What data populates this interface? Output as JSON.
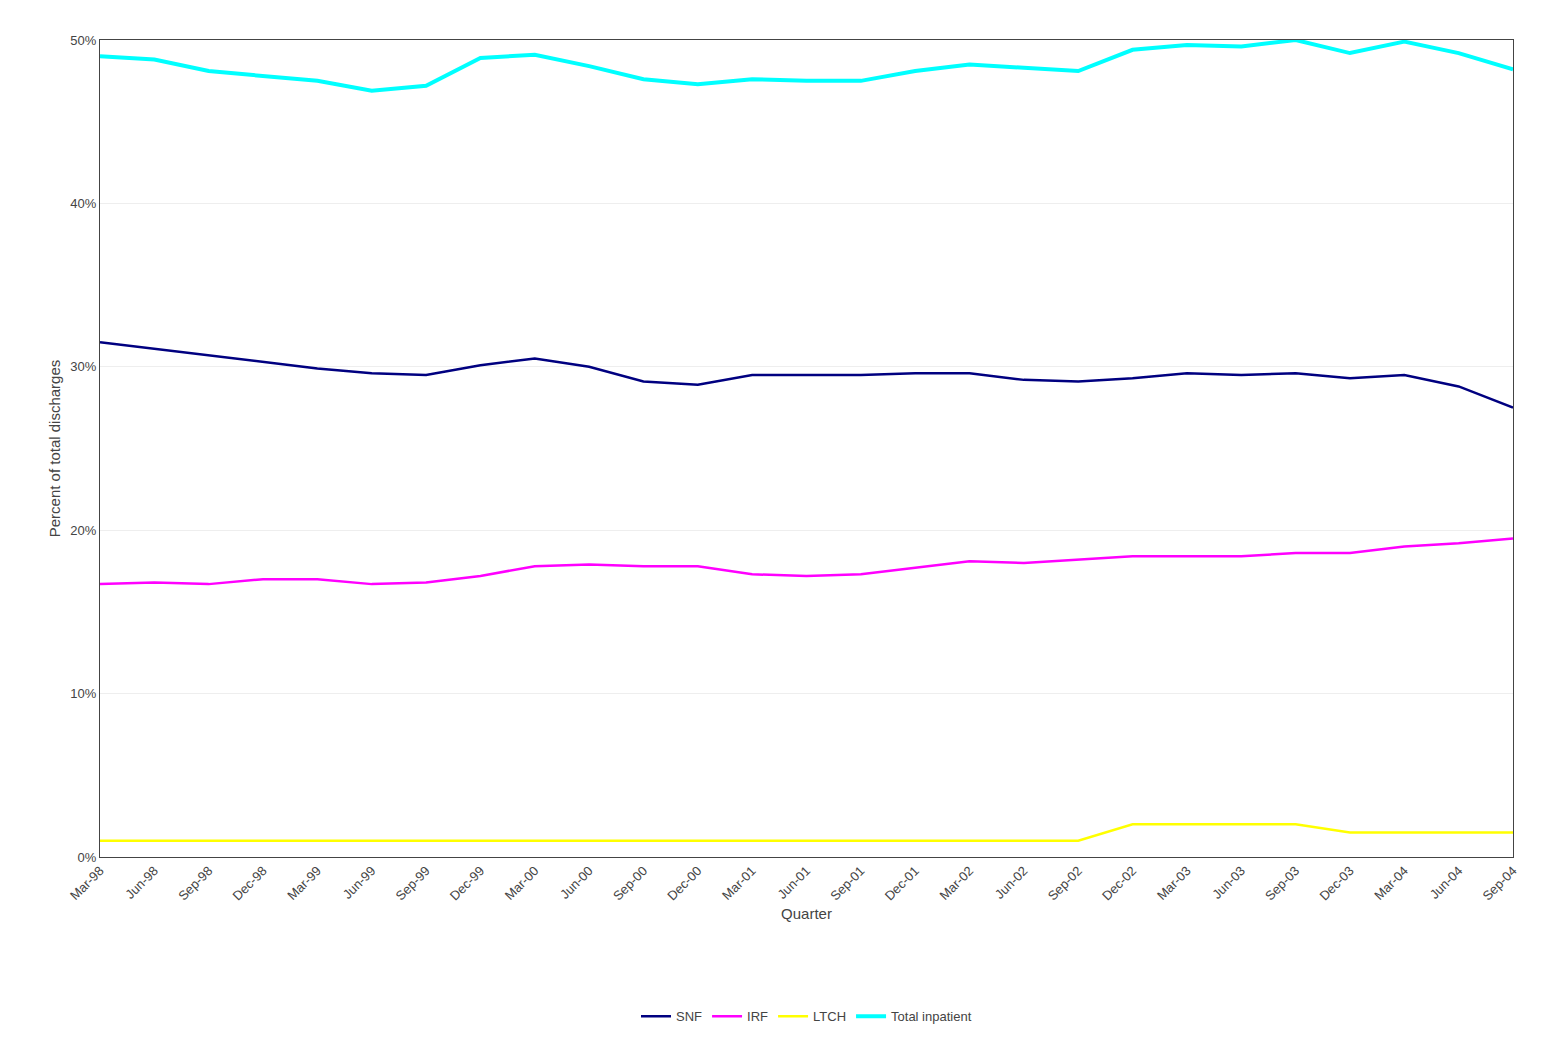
{
  "chart_data": {
    "type": "line",
    "xlabel": "Quarter",
    "ylabel": "Percent of total discharges",
    "categories": [
      "Mar-98",
      "Jun-98",
      "Sep-98",
      "Dec-98",
      "Mar-99",
      "Jun-99",
      "Sep-99",
      "Dec-99",
      "Mar-00",
      "Jun-00",
      "Sep-00",
      "Dec-00",
      "Mar-01",
      "Jun-01",
      "Sep-01",
      "Dec-01",
      "Mar-02",
      "Jun-02",
      "Sep-02",
      "Dec-02",
      "Mar-03",
      "Jun-03",
      "Sep-03",
      "Dec-03",
      "Mar-04",
      "Jun-04",
      "Sep-04"
    ],
    "series": [
      {
        "name": "SNF",
        "color": "#000080",
        "values": [
          0.315,
          0.311,
          0.307,
          0.303,
          0.299,
          0.296,
          0.295,
          0.301,
          0.305,
          0.3,
          0.291,
          0.289,
          0.295,
          0.295,
          0.295,
          0.296,
          0.296,
          0.292,
          0.291,
          0.293,
          0.296,
          0.295,
          0.296,
          0.293,
          0.295,
          0.288,
          0.275
        ]
      },
      {
        "name": "IRF",
        "color": "#FF00FF",
        "values": [
          0.167,
          0.168,
          0.167,
          0.17,
          0.17,
          0.167,
          0.168,
          0.172,
          0.178,
          0.179,
          0.178,
          0.178,
          0.173,
          0.172,
          0.173,
          0.177,
          0.181,
          0.18,
          0.182,
          0.184,
          0.184,
          0.184,
          0.186,
          0.186,
          0.19,
          0.192,
          0.195
        ]
      },
      {
        "name": "LTCH",
        "color": "#FFFF00",
        "values": [
          0.01,
          0.01,
          0.01,
          0.01,
          0.01,
          0.01,
          0.01,
          0.01,
          0.01,
          0.01,
          0.01,
          0.01,
          0.01,
          0.01,
          0.01,
          0.01,
          0.01,
          0.01,
          0.01,
          0.02,
          0.02,
          0.02,
          0.02,
          0.015,
          0.015,
          0.015,
          0.015
        ]
      },
      {
        "name": "Total inpatient",
        "color": "#00FFFF",
        "values": [
          0.49,
          0.488,
          0.481,
          0.478,
          0.475,
          0.469,
          0.472,
          0.489,
          0.491,
          0.484,
          0.476,
          0.473,
          0.476,
          0.475,
          0.475,
          0.481,
          0.485,
          0.483,
          0.481,
          0.494,
          0.497,
          0.496,
          0.5,
          0.492,
          0.499,
          0.492,
          0.482
        ]
      }
    ],
    "ylim": [
      0.0,
      0.5
    ],
    "yticks": [
      {
        "value": 0.0,
        "label": "0%"
      },
      {
        "value": 0.1,
        "label": "10%"
      },
      {
        "value": 0.2,
        "label": "20%"
      },
      {
        "value": 0.3,
        "label": "30%"
      },
      {
        "value": 0.4,
        "label": "40%"
      },
      {
        "value": 0.5,
        "label": "50%"
      }
    ],
    "grid": true,
    "legend": "bottom"
  }
}
